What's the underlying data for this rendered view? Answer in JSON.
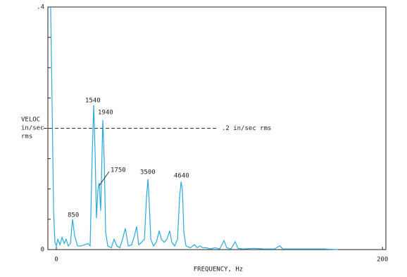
{
  "chart_data": {
    "type": "line",
    "xlabel": "FREQUENCY, Hz",
    "ylabel": [
      "VELOC",
      "in/sec",
      "rms"
    ],
    "xlim": [
      -5.2,
      202.1
    ],
    "ylim": [
      0,
      0.4
    ],
    "xticks": [
      0,
      200
    ],
    "yticks": [
      0,
      {
        "value": 0.4,
        "label": ".4"
      }
    ],
    "yminorticks": [
      0.05,
      0.1,
      0.15,
      0.2,
      0.25,
      0.3,
      0.35
    ],
    "reference_line": {
      "value": 0.2,
      "label": ".2 in/sec rms"
    },
    "annotations": [
      "850",
      "1540",
      "1940",
      "1750",
      "3500",
      "4640"
    ],
    "series": [
      {
        "color": "#2aa9d9",
        "x": [
          -3.5,
          -2.6,
          -1.7,
          -0.9,
          0,
          0.9,
          2.2,
          3.5,
          4.8,
          6.0,
          7.3,
          8.6,
          9.9,
          11.2,
          13.0,
          15.1,
          17.3,
          19.4,
          20.7,
          22.0,
          22.9,
          23.8,
          24.6,
          25.5,
          26.3,
          27.2,
          28.5,
          29.4,
          30.2,
          31.5,
          33.7,
          35.4,
          37.1,
          38.9,
          40.6,
          42.3,
          44.1,
          46.2,
          47.9,
          49.2,
          50.5,
          52.3,
          54.0,
          55.3,
          56.2,
          57.0,
          57.9,
          59.6,
          61.3,
          63.1,
          64.4,
          66.1,
          67.8,
          69.5,
          70.8,
          72.6,
          74.3,
          75.6,
          76.5,
          77.3,
          78.2,
          79.5,
          82.1,
          84.7,
          86.4,
          88.1,
          89.8,
          92.0,
          94.2,
          97.2,
          100.2,
          102.8,
          104.5,
          107.1,
          109.7,
          111.4,
          114.5,
          121.0,
          127.4,
          133.9,
          136.9,
          139.1,
          146.9,
          155.5,
          164.1,
          172.8
        ],
        "values": [
          0.4,
          0.238,
          0.064,
          0.012,
          0.006,
          0.017,
          0.008,
          0.02,
          0.01,
          0.017,
          0.006,
          0.01,
          0.05,
          0.023,
          0.006,
          0.006,
          0.008,
          0.01,
          0.006,
          0.157,
          0.238,
          0.157,
          0.052,
          0.099,
          0.11,
          0.064,
          0.214,
          0.145,
          0.029,
          0.006,
          0.003,
          0.017,
          0.006,
          0.003,
          0.017,
          0.035,
          0.006,
          0.008,
          0.023,
          0.038,
          0.008,
          0.012,
          0.017,
          0.087,
          0.116,
          0.075,
          0.017,
          0.006,
          0.012,
          0.031,
          0.017,
          0.012,
          0.017,
          0.031,
          0.012,
          0.006,
          0.017,
          0.087,
          0.112,
          0.099,
          0.029,
          0.006,
          0.003,
          0.008,
          0.003,
          0.006,
          0.003,
          0.003,
          0.001,
          0.003,
          0.001,
          0.015,
          0.003,
          0.001,
          0.013,
          0.002,
          0.001,
          0.002,
          0.001,
          0.001,
          0.006,
          0.001,
          0.001,
          0.001,
          0.001,
          0
        ]
      }
    ]
  }
}
